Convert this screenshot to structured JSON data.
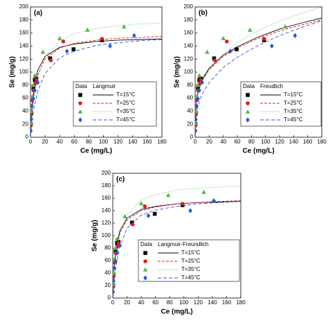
{
  "chart_data": [
    {
      "type": "scatter",
      "panel_label": "(a)",
      "x_label": "Ce (mg/L)",
      "y_label": "Se (mg/g)",
      "legend_headers": [
        "Data",
        "Langmuir"
      ],
      "xlim": [
        0,
        180
      ],
      "ylim": [
        0,
        200
      ],
      "xticks": [
        0,
        20,
        40,
        60,
        80,
        100,
        120,
        140,
        160,
        180
      ],
      "yticks": [
        0,
        20,
        40,
        60,
        80,
        100,
        120,
        140,
        160,
        180,
        200
      ],
      "series": [
        {
          "name": "T=15°C",
          "color": "#000000",
          "marker": "square",
          "x": [
            0.5,
            1,
            2,
            4,
            6,
            8,
            27,
            59,
            98
          ],
          "values": [
            20,
            37,
            58,
            76,
            88,
            90,
            121,
            135,
            149
          ]
        },
        {
          "name": "T=25°C",
          "color": "#e41a1c",
          "marker": "circle",
          "x": [
            0.5,
            1,
            2,
            4,
            6,
            8,
            28,
            45,
            98
          ],
          "values": [
            18,
            35,
            57,
            72,
            82,
            88,
            118,
            147,
            151
          ]
        },
        {
          "name": "T=35°C",
          "color": "#4cbb47",
          "marker": "triangle",
          "x": [
            0.5,
            1,
            2,
            4,
            6,
            17,
            40,
            78,
            128
          ],
          "values": [
            22,
            40,
            62,
            80,
            95,
            131,
            152,
            165,
            170
          ]
        },
        {
          "name": "T=45°C",
          "color": "#2255dd",
          "marker": "diamond",
          "x": [
            0.5,
            1,
            2,
            4,
            6,
            10,
            50,
            109,
            142
          ],
          "values": [
            10,
            27,
            48,
            59,
            72,
            84,
            132,
            140,
            156
          ]
        }
      ],
      "fit_x": [
        0,
        2,
        5,
        10,
        20,
        40,
        60,
        90,
        120,
        150,
        180
      ],
      "fits": [
        {
          "color": "#000000",
          "dash": "none",
          "values": [
            0,
            44,
            77.5,
            103,
            124,
            138,
            143,
            147,
            149,
            150,
            151
          ]
        },
        {
          "color": "#e41a1c",
          "dash": "4 2",
          "values": [
            0,
            37,
            69,
            96,
            120,
            137,
            144,
            149,
            152,
            153,
            155
          ]
        },
        {
          "color": "#4cbb47",
          "dash": "1 2",
          "values": [
            0,
            31,
            62,
            92,
            123,
            148,
            159,
            167,
            171,
            174,
            175
          ]
        },
        {
          "color": "#2255dd",
          "dash": "5 3",
          "values": [
            0,
            22,
            46,
            71,
            98,
            122,
            132,
            141,
            145,
            148,
            150
          ]
        }
      ]
    },
    {
      "type": "scatter",
      "panel_label": "(b)",
      "x_label": "Ce (mg/L)",
      "y_label": "Se (mg/g)",
      "legend_headers": [
        "Data",
        "Freudlich"
      ],
      "xlim": [
        0,
        180
      ],
      "ylim": [
        0,
        200
      ],
      "xticks": [
        0,
        20,
        40,
        60,
        80,
        100,
        120,
        140,
        160,
        180
      ],
      "yticks": [
        0,
        20,
        40,
        60,
        80,
        100,
        120,
        140,
        160,
        180,
        200
      ],
      "series": [
        {
          "name": "T=15°C",
          "color": "#000000",
          "marker": "square",
          "x": [
            0.5,
            1,
            2,
            4,
            6,
            8,
            27,
            59,
            98
          ],
          "values": [
            20,
            37,
            58,
            76,
            88,
            90,
            121,
            135,
            149
          ]
        },
        {
          "name": "T=25°C",
          "color": "#e41a1c",
          "marker": "circle",
          "x": [
            0.5,
            1,
            2,
            4,
            6,
            8,
            28,
            45,
            98
          ],
          "values": [
            18,
            35,
            57,
            72,
            82,
            88,
            118,
            147,
            151
          ]
        },
        {
          "name": "T=35°C",
          "color": "#4cbb47",
          "marker": "triangle",
          "x": [
            0.5,
            1,
            2,
            4,
            6,
            17,
            40,
            78,
            128
          ],
          "values": [
            22,
            40,
            62,
            80,
            95,
            131,
            152,
            165,
            170
          ]
        },
        {
          "name": "T=45°C",
          "color": "#2255dd",
          "marker": "diamond",
          "x": [
            0.5,
            1,
            2,
            4,
            6,
            10,
            50,
            109,
            142
          ],
          "values": [
            10,
            27,
            48,
            59,
            72,
            84,
            132,
            140,
            156
          ]
        }
      ],
      "fit_x": [
        0,
        2,
        5,
        10,
        20,
        40,
        60,
        90,
        120,
        150,
        180
      ],
      "fits": [
        {
          "color": "#000000",
          "dash": "none",
          "values": [
            0,
            59,
            75,
            89,
            106,
            126,
            139,
            154,
            166,
            175,
            183
          ]
        },
        {
          "color": "#e41a1c",
          "dash": "4 2",
          "values": [
            0,
            57,
            73,
            87,
            104,
            124,
            137,
            152,
            163,
            172,
            180
          ]
        },
        {
          "color": "#4cbb47",
          "dash": "1 2",
          "values": [
            0,
            52,
            69,
            84,
            104,
            128,
            145,
            164,
            178,
            190,
            200
          ]
        },
        {
          "color": "#2255dd",
          "dash": "5 3",
          "values": [
            0,
            38,
            52,
            66,
            84,
            107,
            123,
            141,
            156,
            168,
            179
          ]
        }
      ]
    },
    {
      "type": "scatter",
      "panel_label": "(c)",
      "x_label": "Ce (mg/L)",
      "y_label": "Se (mg/g)",
      "legend_headers": [
        "Data",
        "Langmuir-Freundlich"
      ],
      "xlim": [
        0,
        180
      ],
      "ylim": [
        0,
        200
      ],
      "xticks": [
        0,
        20,
        40,
        60,
        80,
        100,
        120,
        140,
        160,
        180
      ],
      "yticks": [
        0,
        20,
        40,
        60,
        80,
        100,
        120,
        140,
        160,
        180,
        200
      ],
      "series": [
        {
          "name": "T=15°C",
          "color": "#000000",
          "marker": "square",
          "x": [
            0.5,
            1,
            2,
            4,
            6,
            8,
            27,
            59,
            98
          ],
          "values": [
            20,
            37,
            58,
            76,
            88,
            90,
            121,
            135,
            149
          ]
        },
        {
          "name": "T=25°C",
          "color": "#e41a1c",
          "marker": "circle",
          "x": [
            0.5,
            1,
            2,
            4,
            6,
            8,
            28,
            45,
            98
          ],
          "values": [
            18,
            35,
            57,
            72,
            82,
            88,
            118,
            147,
            151
          ]
        },
        {
          "name": "T=35°C",
          "color": "#4cbb47",
          "marker": "triangle",
          "x": [
            0.5,
            1,
            2,
            4,
            6,
            17,
            40,
            78,
            128
          ],
          "values": [
            22,
            40,
            62,
            80,
            95,
            131,
            152,
            165,
            170
          ]
        },
        {
          "name": "T=45°C",
          "color": "#2255dd",
          "marker": "diamond",
          "x": [
            0.5,
            1,
            2,
            4,
            6,
            10,
            50,
            109,
            142
          ],
          "values": [
            10,
            27,
            48,
            59,
            72,
            84,
            132,
            140,
            156
          ]
        }
      ],
      "fit_x": [
        0,
        2,
        5,
        10,
        20,
        40,
        60,
        90,
        120,
        150,
        180
      ],
      "fits": [
        {
          "color": "#000000",
          "dash": "none",
          "values": [
            0,
            48,
            82,
            108,
            128,
            142,
            147,
            151,
            153,
            154,
            155
          ]
        },
        {
          "color": "#e41a1c",
          "dash": "4 2",
          "values": [
            0,
            45,
            78,
            104,
            125,
            140,
            146,
            151,
            153,
            155,
            156
          ]
        },
        {
          "color": "#4cbb47",
          "dash": "1 2",
          "values": [
            0,
            40,
            72,
            103,
            133,
            157,
            166,
            173,
            176,
            178,
            180
          ]
        },
        {
          "color": "#2255dd",
          "dash": "5 3",
          "values": [
            0,
            28,
            55,
            83,
            112,
            133,
            141,
            147,
            151,
            153,
            155
          ]
        }
      ]
    }
  ]
}
